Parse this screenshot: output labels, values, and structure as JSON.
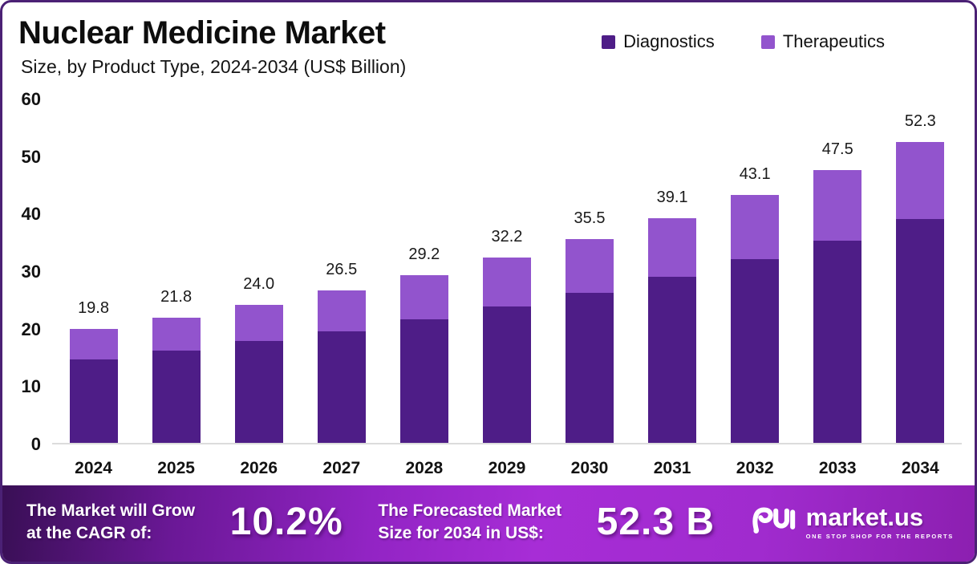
{
  "header": {
    "title": "Nuclear Medicine Market",
    "subtitle": "Size, by Product Type, 2024-2034 (US$ Billion)"
  },
  "legend": [
    {
      "label": "Diagnostics",
      "color": "#4E1D87"
    },
    {
      "label": "Therapeutics",
      "color": "#9254CD"
    }
  ],
  "chart_data": {
    "type": "bar",
    "stacked": true,
    "title": "Nuclear Medicine Market Size, by Product Type, 2024-2034 (US$ Billion)",
    "categories": [
      "2024",
      "2025",
      "2026",
      "2027",
      "2028",
      "2029",
      "2030",
      "2031",
      "2032",
      "2033",
      "2034"
    ],
    "series": [
      {
        "name": "Diagnostics",
        "color": "#4E1D87",
        "values": [
          14.5,
          16.1,
          17.7,
          19.4,
          21.5,
          23.7,
          26.1,
          28.9,
          32.0,
          35.2,
          38.9
        ]
      },
      {
        "name": "Therapeutics",
        "color": "#9254CD",
        "values": [
          5.3,
          5.7,
          6.3,
          7.1,
          7.7,
          8.5,
          9.4,
          10.2,
          11.1,
          12.3,
          13.4
        ]
      }
    ],
    "totals": [
      19.8,
      21.8,
      24.0,
      26.5,
      29.2,
      32.2,
      35.5,
      39.1,
      43.1,
      47.5,
      52.3
    ],
    "y_ticks": [
      60,
      50,
      40,
      30,
      20,
      10,
      0
    ],
    "ylim": [
      0,
      60
    ],
    "grid": false,
    "legend_position": "top-right",
    "value_labels": "total above each stacked bar, one decimal"
  },
  "footer": {
    "cagr_label_lines": [
      "The Market will Grow",
      "at the CAGR of:"
    ],
    "cagr_value": "10.2%",
    "forecast_label_lines": [
      "The Forecasted Market",
      "Size for 2034 in US$:"
    ],
    "forecast_value": "52.3 B",
    "brand": {
      "name": "market.us",
      "tagline": "ONE STOP SHOP FOR THE REPORTS"
    },
    "gradient": [
      "#390F55",
      "#A72DD6",
      "#8C1FB0"
    ]
  },
  "frame": {
    "border_color": "#4B2175",
    "background": "#FFFFFF"
  }
}
